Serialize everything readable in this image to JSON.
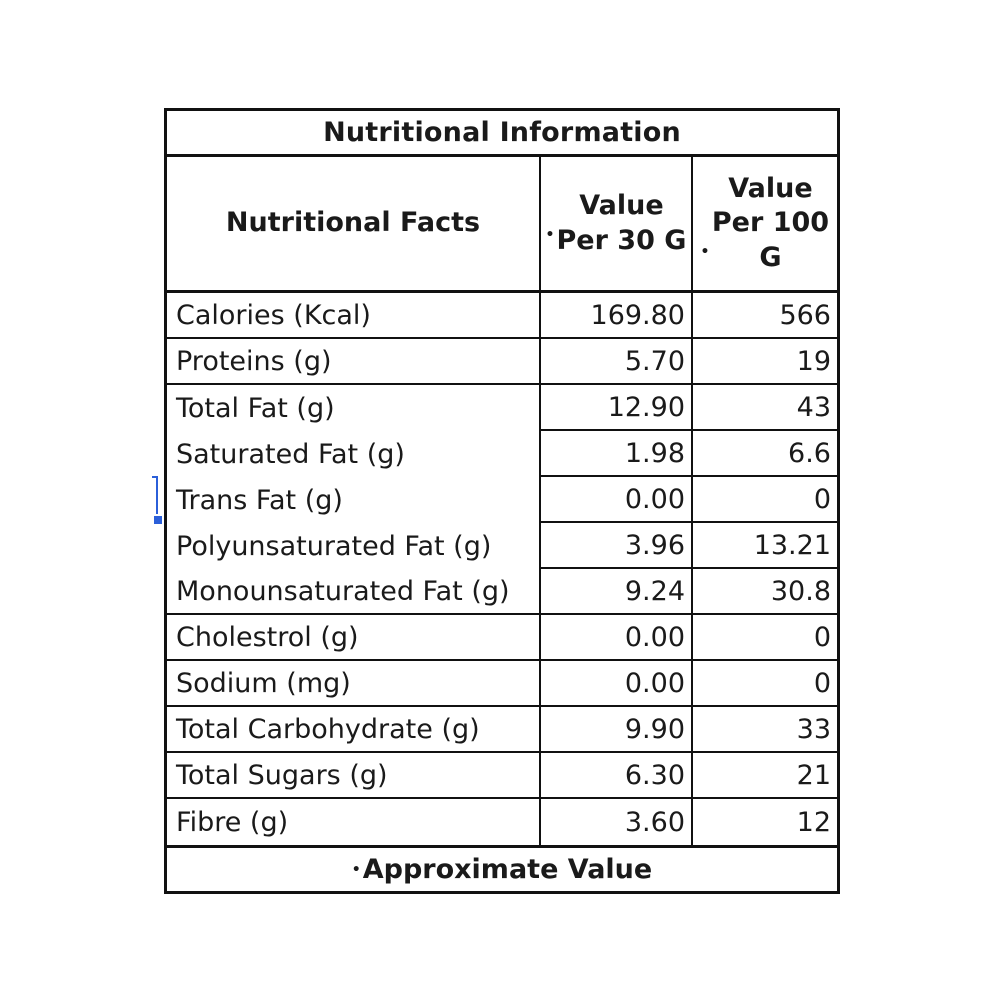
{
  "table": {
    "title": "Nutritional Information",
    "headers": {
      "facts": "Nutritional Facts",
      "per30_marker": "•",
      "per30": "Value Per 30 G",
      "per100_marker": "•",
      "per100": "Value Per 100 G"
    },
    "rows": [
      {
        "name": "Calories (Kcal)",
        "per30": "169.80",
        "per100": "566"
      },
      {
        "name": "Proteins (g)",
        "per30": "5.70",
        "per100": "19"
      },
      {
        "name": "Total Fat (g)",
        "per30": "12.90",
        "per100": "43"
      },
      {
        "name": "Saturated Fat (g)",
        "per30": "1.98",
        "per100": "6.6"
      },
      {
        "name": "Trans Fat (g)",
        "per30": "0.00",
        "per100": "0"
      },
      {
        "name": "Polyunsaturated Fat (g)",
        "per30": "3.96",
        "per100": "13.21"
      },
      {
        "name": "Monounsaturated Fat (g)",
        "per30": "9.24",
        "per100": "30.8"
      },
      {
        "name": "Cholestrol (g)",
        "per30": "0.00",
        "per100": "0"
      },
      {
        "name": "Sodium  (mg)",
        "per30": "0.00",
        "per100": "0"
      },
      {
        "name": "Total Carbohydrate (g)",
        "per30": "9.90",
        "per100": "33"
      },
      {
        "name": "Total Sugars (g)",
        "per30": "6.30",
        "per100": "21"
      },
      {
        "name": "Fibre (g)",
        "per30": "3.60",
        "per100": "12"
      }
    ],
    "footer_marker": "•",
    "footer": "Approximate Value"
  },
  "colors": {
    "border": "#111111",
    "text": "#1a1a1a",
    "cursor": "#2b5fd9"
  }
}
